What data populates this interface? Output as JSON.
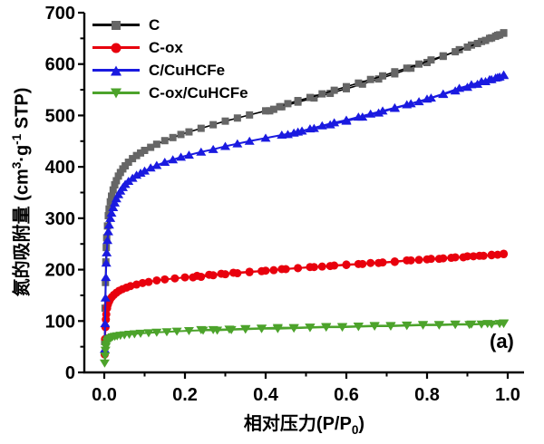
{
  "figure": {
    "annotation": "(a)"
  },
  "axes": {
    "xlabel": {
      "pre": "相对压力(P/P",
      "sub": "0",
      "post": ")"
    },
    "ylabel": {
      "p1": "氮的吸附量 (cm",
      "sup1": "3",
      "p2": "·g",
      "sup2": "-1",
      "p3": " STP)"
    },
    "xtick_labels": [
      "0.0",
      "0.2",
      "0.4",
      "0.6",
      "0.8",
      "1.0"
    ],
    "ytick_labels": [
      "0",
      "100",
      "200",
      "300",
      "400",
      "500",
      "600",
      "700"
    ]
  },
  "chart_data": {
    "type": "line",
    "title": "",
    "xlabel": "相对压力(P/P0)",
    "ylabel": "氮的吸附量 (cm3·g-1 STP)",
    "annotation": "(a)",
    "xlim": [
      0,
      1.0
    ],
    "ylim": [
      0,
      700
    ],
    "xticks": [
      0.0,
      0.2,
      0.4,
      0.6,
      0.8,
      1.0
    ],
    "yticks": [
      0,
      100,
      200,
      300,
      400,
      500,
      600,
      700
    ],
    "x_minor_step": 0.1,
    "y_minor_step": 50,
    "grid": false,
    "legend_position": "top-left",
    "series": [
      {
        "name": "C",
        "marker": "square",
        "line_color": "#000000",
        "marker_color": "#666666",
        "line_width": 1.6,
        "adsorption": [
          [
            0.001,
            60
          ],
          [
            0.002,
            125
          ],
          [
            0.003,
            175
          ],
          [
            0.004,
            215
          ],
          [
            0.005,
            243
          ],
          [
            0.006,
            262
          ],
          [
            0.008,
            285
          ],
          [
            0.01,
            305
          ],
          [
            0.012,
            318
          ],
          [
            0.015,
            332
          ],
          [
            0.018,
            343
          ],
          [
            0.022,
            355
          ],
          [
            0.026,
            365
          ],
          [
            0.03,
            373
          ],
          [
            0.035,
            382
          ],
          [
            0.04,
            389
          ],
          [
            0.046,
            396
          ],
          [
            0.052,
            402
          ],
          [
            0.06,
            409
          ],
          [
            0.07,
            416
          ],
          [
            0.08,
            422
          ],
          [
            0.09,
            427
          ],
          [
            0.1,
            432
          ],
          [
            0.115,
            438
          ],
          [
            0.13,
            444
          ],
          [
            0.15,
            451
          ],
          [
            0.17,
            457
          ],
          [
            0.19,
            463
          ],
          [
            0.21,
            468
          ],
          [
            0.24,
            475
          ],
          [
            0.27,
            482
          ],
          [
            0.3,
            489
          ],
          [
            0.33,
            495
          ],
          [
            0.36,
            501
          ],
          [
            0.4,
            509
          ],
          [
            0.44,
            517
          ],
          [
            0.48,
            526
          ],
          [
            0.52,
            534
          ],
          [
            0.56,
            543
          ],
          [
            0.6,
            552
          ],
          [
            0.64,
            561
          ],
          [
            0.68,
            571
          ],
          [
            0.72,
            581
          ],
          [
            0.76,
            592
          ],
          [
            0.8,
            603
          ],
          [
            0.84,
            615
          ],
          [
            0.88,
            628
          ],
          [
            0.91,
            637
          ],
          [
            0.935,
            644
          ],
          [
            0.955,
            650
          ],
          [
            0.97,
            654
          ],
          [
            0.98,
            657
          ],
          [
            0.99,
            660
          ]
        ],
        "desorption": [
          [
            0.99,
            661
          ],
          [
            0.975,
            656
          ],
          [
            0.96,
            651
          ],
          [
            0.945,
            646
          ],
          [
            0.925,
            640
          ],
          [
            0.9,
            633
          ],
          [
            0.87,
            624
          ],
          [
            0.84,
            616
          ],
          [
            0.81,
            608
          ],
          [
            0.78,
            600
          ],
          [
            0.75,
            592
          ],
          [
            0.72,
            585
          ],
          [
            0.69,
            577
          ],
          [
            0.66,
            570
          ],
          [
            0.63,
            563
          ],
          [
            0.6,
            556
          ],
          [
            0.57,
            549
          ],
          [
            0.54,
            542
          ],
          [
            0.51,
            535
          ],
          [
            0.48,
            529
          ],
          [
            0.455,
            523
          ],
          [
            0.435,
            517
          ],
          [
            0.42,
            512
          ],
          [
            0.41,
            509
          ]
        ]
      },
      {
        "name": "C-ox",
        "marker": "circle",
        "line_color": "#e8000d",
        "marker_color": "#e8000d",
        "line_width": 2.0,
        "adsorption": [
          [
            0.001,
            35
          ],
          [
            0.002,
            65
          ],
          [
            0.003,
            88
          ],
          [
            0.004,
            103
          ],
          [
            0.005,
            113
          ],
          [
            0.007,
            125
          ],
          [
            0.009,
            132
          ],
          [
            0.012,
            138
          ],
          [
            0.015,
            143
          ],
          [
            0.019,
            147
          ],
          [
            0.024,
            151
          ],
          [
            0.03,
            155
          ],
          [
            0.037,
            159
          ],
          [
            0.045,
            162
          ],
          [
            0.055,
            165
          ],
          [
            0.065,
            168
          ],
          [
            0.08,
            171
          ],
          [
            0.095,
            174
          ],
          [
            0.11,
            176
          ],
          [
            0.13,
            179
          ],
          [
            0.15,
            181
          ],
          [
            0.175,
            183
          ],
          [
            0.2,
            185
          ],
          [
            0.23,
            188
          ],
          [
            0.26,
            190
          ],
          [
            0.29,
            192
          ],
          [
            0.32,
            194
          ],
          [
            0.36,
            196
          ],
          [
            0.4,
            198
          ],
          [
            0.44,
            201
          ],
          [
            0.48,
            203
          ],
          [
            0.52,
            205
          ],
          [
            0.56,
            207
          ],
          [
            0.6,
            209
          ],
          [
            0.64,
            211
          ],
          [
            0.68,
            213
          ],
          [
            0.72,
            215
          ],
          [
            0.76,
            218
          ],
          [
            0.8,
            220
          ],
          [
            0.83,
            221
          ],
          [
            0.86,
            223
          ],
          [
            0.89,
            224
          ],
          [
            0.915,
            226
          ],
          [
            0.94,
            227
          ],
          [
            0.96,
            228
          ],
          [
            0.975,
            229
          ],
          [
            0.99,
            230
          ]
        ],
        "desorption": [
          [
            0.99,
            231
          ],
          [
            0.96,
            229
          ],
          [
            0.93,
            227
          ],
          [
            0.9,
            226
          ],
          [
            0.87,
            224
          ],
          [
            0.84,
            222
          ],
          [
            0.81,
            221
          ],
          [
            0.78,
            219
          ],
          [
            0.75,
            218
          ],
          [
            0.72,
            216
          ],
          [
            0.69,
            214
          ],
          [
            0.66,
            213
          ],
          [
            0.63,
            211
          ],
          [
            0.6,
            210
          ],
          [
            0.57,
            208
          ],
          [
            0.54,
            206
          ],
          [
            0.51,
            205
          ],
          [
            0.48,
            203
          ],
          [
            0.45,
            201
          ],
          [
            0.42,
            199
          ],
          [
            0.39,
            197
          ],
          [
            0.36,
            195
          ],
          [
            0.33,
            193
          ],
          [
            0.3,
            191
          ],
          [
            0.27,
            189
          ],
          [
            0.24,
            186
          ],
          [
            0.22,
            185
          ]
        ]
      },
      {
        "name": "C/CuHCFe",
        "marker": "triangle-up",
        "line_color": "#1a1ae0",
        "marker_color": "#1a1ae0",
        "line_width": 2.0,
        "adsorption": [
          [
            0.001,
            45
          ],
          [
            0.002,
            95
          ],
          [
            0.003,
            145
          ],
          [
            0.004,
            185
          ],
          [
            0.005,
            213
          ],
          [
            0.006,
            233
          ],
          [
            0.008,
            257
          ],
          [
            0.01,
            274
          ],
          [
            0.012,
            287
          ],
          [
            0.015,
            300
          ],
          [
            0.018,
            310
          ],
          [
            0.022,
            321
          ],
          [
            0.026,
            330
          ],
          [
            0.03,
            338
          ],
          [
            0.035,
            346
          ],
          [
            0.04,
            353
          ],
          [
            0.046,
            360
          ],
          [
            0.052,
            366
          ],
          [
            0.06,
            372
          ],
          [
            0.07,
            378
          ],
          [
            0.08,
            384
          ],
          [
            0.09,
            388
          ],
          [
            0.1,
            392
          ],
          [
            0.115,
            398
          ],
          [
            0.13,
            403
          ],
          [
            0.15,
            409
          ],
          [
            0.17,
            414
          ],
          [
            0.19,
            419
          ],
          [
            0.21,
            423
          ],
          [
            0.24,
            429
          ],
          [
            0.27,
            434
          ],
          [
            0.3,
            440
          ],
          [
            0.33,
            445
          ],
          [
            0.36,
            450
          ],
          [
            0.4,
            456
          ],
          [
            0.44,
            462
          ],
          [
            0.48,
            468
          ],
          [
            0.52,
            475
          ],
          [
            0.56,
            482
          ],
          [
            0.6,
            489
          ],
          [
            0.64,
            497
          ],
          [
            0.68,
            505
          ],
          [
            0.72,
            514
          ],
          [
            0.76,
            523
          ],
          [
            0.8,
            532
          ],
          [
            0.84,
            542
          ],
          [
            0.88,
            553
          ],
          [
            0.91,
            560
          ],
          [
            0.935,
            566
          ],
          [
            0.955,
            570
          ],
          [
            0.97,
            573
          ],
          [
            0.98,
            575
          ],
          [
            0.99,
            578
          ]
        ],
        "desorption": [
          [
            0.99,
            579
          ],
          [
            0.975,
            574
          ],
          [
            0.96,
            570
          ],
          [
            0.945,
            566
          ],
          [
            0.925,
            561
          ],
          [
            0.9,
            555
          ],
          [
            0.87,
            548
          ],
          [
            0.84,
            541
          ],
          [
            0.81,
            534
          ],
          [
            0.78,
            527
          ],
          [
            0.75,
            521
          ],
          [
            0.72,
            515
          ],
          [
            0.69,
            509
          ],
          [
            0.66,
            503
          ],
          [
            0.63,
            497
          ],
          [
            0.6,
            491
          ],
          [
            0.57,
            486
          ],
          [
            0.54,
            480
          ],
          [
            0.51,
            474
          ],
          [
            0.49,
            470
          ],
          [
            0.47,
            466
          ],
          [
            0.455,
            463
          ]
        ]
      },
      {
        "name": "C-ox/CuHCFe",
        "marker": "triangle-down",
        "line_color": "#4ca32b",
        "marker_color": "#4ca32b",
        "line_width": 2.0,
        "adsorption": [
          [
            0.001,
            18
          ],
          [
            0.002,
            32
          ],
          [
            0.003,
            43
          ],
          [
            0.004,
            50
          ],
          [
            0.005,
            55
          ],
          [
            0.007,
            60
          ],
          [
            0.009,
            63
          ],
          [
            0.012,
            65
          ],
          [
            0.016,
            67
          ],
          [
            0.02,
            69
          ],
          [
            0.026,
            70
          ],
          [
            0.032,
            71
          ],
          [
            0.04,
            72
          ],
          [
            0.05,
            73
          ],
          [
            0.062,
            74
          ],
          [
            0.075,
            75
          ],
          [
            0.09,
            76
          ],
          [
            0.11,
            77
          ],
          [
            0.13,
            78
          ],
          [
            0.155,
            79
          ],
          [
            0.18,
            80
          ],
          [
            0.21,
            81
          ],
          [
            0.245,
            82
          ],
          [
            0.28,
            82
          ],
          [
            0.315,
            83
          ],
          [
            0.35,
            84
          ],
          [
            0.39,
            85
          ],
          [
            0.43,
            85
          ],
          [
            0.47,
            86
          ],
          [
            0.51,
            87
          ],
          [
            0.55,
            88
          ],
          [
            0.59,
            88
          ],
          [
            0.63,
            89
          ],
          [
            0.67,
            90
          ],
          [
            0.71,
            90
          ],
          [
            0.75,
            91
          ],
          [
            0.79,
            92
          ],
          [
            0.83,
            92
          ],
          [
            0.87,
            93
          ],
          [
            0.905,
            93
          ],
          [
            0.935,
            94
          ],
          [
            0.96,
            94
          ],
          [
            0.98,
            95
          ],
          [
            0.99,
            95
          ]
        ],
        "desorption": [
          [
            0.99,
            96
          ],
          [
            0.95,
            95
          ],
          [
            0.91,
            94
          ],
          [
            0.87,
            94
          ],
          [
            0.83,
            93
          ],
          [
            0.79,
            93
          ],
          [
            0.75,
            92
          ],
          [
            0.71,
            91
          ],
          [
            0.67,
            91
          ],
          [
            0.63,
            90
          ],
          [
            0.59,
            89
          ],
          [
            0.55,
            89
          ],
          [
            0.51,
            88
          ],
          [
            0.47,
            87
          ],
          [
            0.43,
            87
          ],
          [
            0.39,
            86
          ],
          [
            0.35,
            85
          ],
          [
            0.31,
            84
          ],
          [
            0.27,
            83
          ],
          [
            0.24,
            83
          ]
        ]
      }
    ]
  }
}
